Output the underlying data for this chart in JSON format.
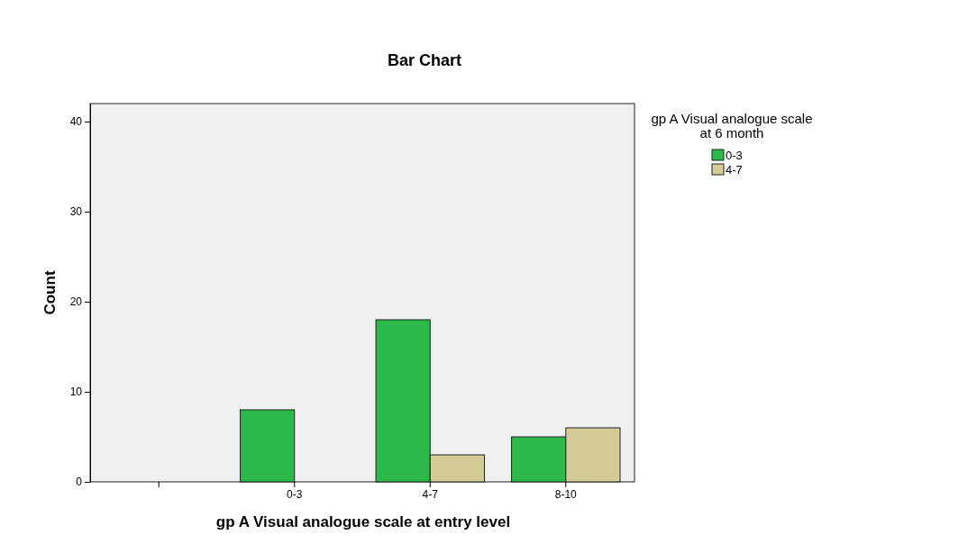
{
  "chart_data": {
    "type": "bar",
    "title": "Bar Chart",
    "xlabel": "gp A Visual analogue scale at entry level",
    "ylabel": "Count",
    "legend_title": "gp A Visual analogue scale at 6 month",
    "categories": [
      null,
      "0-3",
      "4-7",
      "8-10"
    ],
    "series": [
      {
        "name": "0-3",
        "color": "#2db84b",
        "values": [
          null,
          8,
          18,
          5
        ]
      },
      {
        "name": "4-7",
        "color": "#d4cc98",
        "values": [
          null,
          null,
          3,
          6
        ]
      }
    ],
    "ylim": [
      0,
      42
    ],
    "yticks": [
      0,
      10,
      20,
      30,
      40
    ],
    "grid": false,
    "legend": "top right"
  }
}
